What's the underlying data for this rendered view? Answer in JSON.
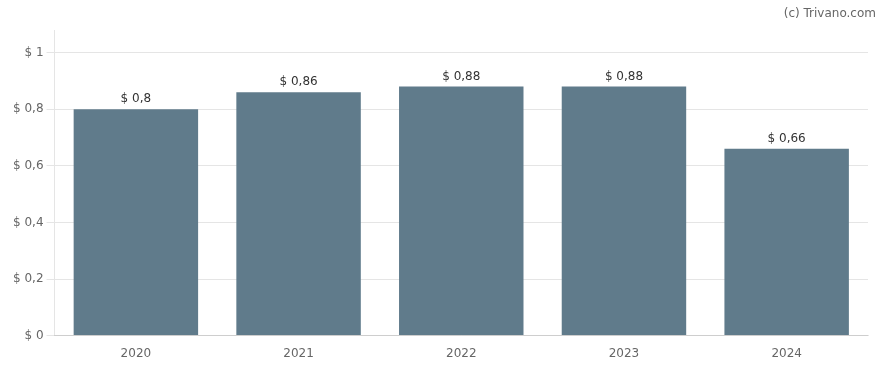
{
  "chart_data": {
    "type": "bar",
    "categories": [
      "2020",
      "2021",
      "2022",
      "2023",
      "2024"
    ],
    "values": [
      0.8,
      0.86,
      0.88,
      0.88,
      0.66
    ],
    "value_labels": [
      "$ 0,8",
      "$ 0,86",
      "$ 0,88",
      "$ 0,88",
      "$ 0,66"
    ],
    "data_labels": true,
    "color": "#607b8b",
    "ylim": [
      0,
      1.08
    ],
    "yticks": [
      {
        "value": 0,
        "label": "$ 0"
      },
      {
        "value": 0.2,
        "label": "$ 0,2"
      },
      {
        "value": 0.4,
        "label": "$ 0,4"
      },
      {
        "value": 0.6,
        "label": "$ 0,6"
      },
      {
        "value": 0.8,
        "label": "$ 0,8"
      },
      {
        "value": 1.0,
        "label": "$ 1"
      }
    ],
    "grid": true,
    "annotations": [
      "(c) Trivano.com"
    ]
  }
}
